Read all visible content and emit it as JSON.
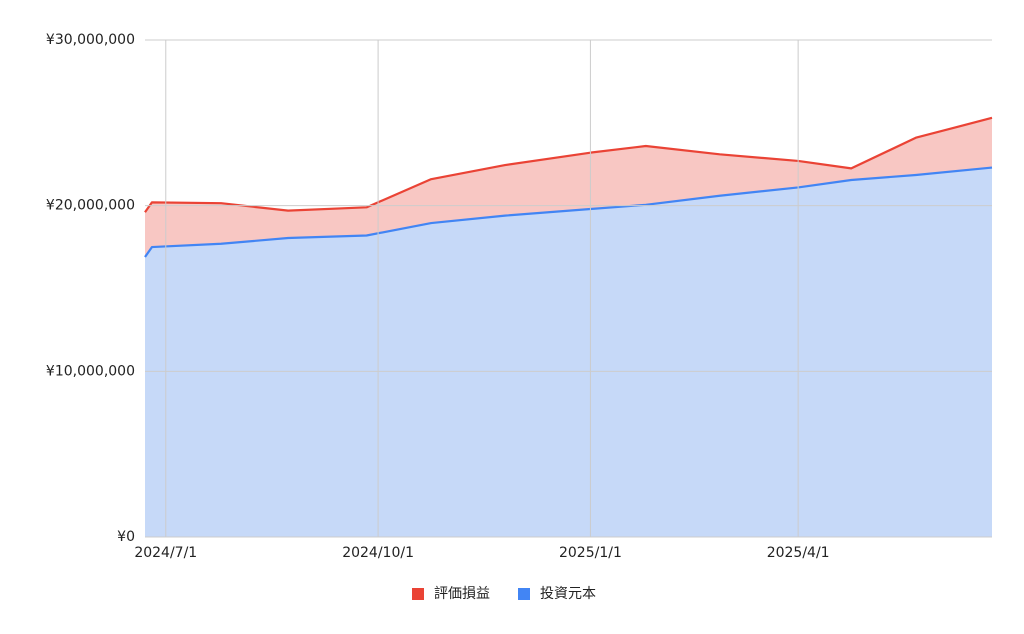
{
  "chart_data": {
    "type": "area",
    "stacked": true,
    "grid": true,
    "legend": "bottom",
    "x": [
      "2024/6/22",
      "2024/6/25",
      "2024/7/25",
      "2024/8/23",
      "2024/9/26",
      "2024/10/24",
      "2024/11/25",
      "2025/1/1",
      "2025/1/25",
      "2025/2/26",
      "2025/4/1",
      "2025/4/24",
      "2025/5/22",
      "2025/6/24"
    ],
    "series": [
      {
        "name": "評価損益",
        "color": "#ea4335",
        "fill": "#f8c7c3",
        "values": [
          2700000,
          2700000,
          2450000,
          1650000,
          1700000,
          2650000,
          3050000,
          3400000,
          3550000,
          2500000,
          1600000,
          700000,
          2250000,
          3000000
        ]
      },
      {
        "name": "投資元本",
        "color": "#4285f4",
        "fill": "#c6d9f8",
        "values": [
          16900000,
          17500000,
          17700000,
          18050000,
          18200000,
          18950000,
          19400000,
          19800000,
          20050000,
          20600000,
          21100000,
          21550000,
          21850000,
          22300000
        ]
      }
    ],
    "xlim": [
      "2024/6/22",
      "2025/6/24"
    ],
    "xticks": [
      "2024/7/1",
      "2024/10/1",
      "2025/1/1",
      "2025/4/1"
    ],
    "ylim": [
      0,
      30000000
    ],
    "yticks": [
      {
        "value": 0,
        "label": "¥0"
      },
      {
        "value": 10000000,
        "label": "¥10,000,000"
      },
      {
        "value": 20000000,
        "label": "¥20,000,000"
      },
      {
        "value": 30000000,
        "label": "¥30,000,000"
      }
    ]
  }
}
